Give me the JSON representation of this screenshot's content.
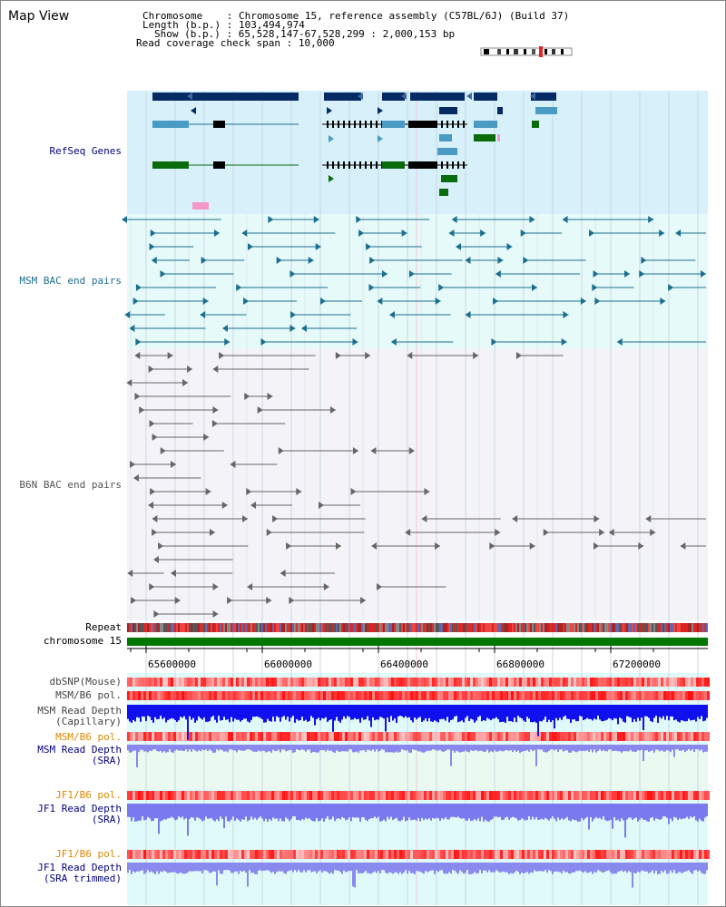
{
  "app": {
    "title": "Map View"
  },
  "info": {
    "chromosome_label": "Chromosome",
    "chromosome_value": "Chromosome 15, reference assembly (C57BL/6J) (Build 37)",
    "length_label": "Length (b.p.)",
    "length_value": "103,494,974",
    "show_label": "Show (b.p.)",
    "show_value": "65,528,147-67,528,299 : 2,000,153 bp",
    "span_label": "Read coverage check span",
    "span_value": "10,000"
  },
  "labels": {
    "refseq": "RefSeq Genes",
    "msm_bac": "MSM BAC end pairs",
    "b6n_bac": "B6N BAC end pairs",
    "repeat": "Repeat",
    "chromosome": "chromosome 15",
    "dbsnp": "dbSNP(Mouse)",
    "msm_b6_pol_1": "MSM/B6 pol.",
    "msm_read_depth_cap_1": "MSM Read Depth",
    "msm_read_depth_cap_2": "(Capillary)",
    "msm_b6_pol_2": "MSM/B6 pol.",
    "msm_read_depth_sra_1": "MSM Read Depth",
    "msm_read_depth_sra_2": "(SRA)",
    "jf1_b6_pol_1": "JF1/B6 pol.",
    "jf1_read_depth_sra_1": "JF1 Read Depth",
    "jf1_read_depth_sra_2": "(SRA)",
    "jf1_b6_pol_2": "JF1/B6 pol.",
    "jf1_read_depth_trim_1": "JF1 Read Depth",
    "jf1_read_depth_trim_2": "(SRA trimmed)"
  },
  "axis": {
    "ticks": [
      "65600000",
      "66000000",
      "66400000",
      "66800000",
      "67200000"
    ]
  },
  "colors": {
    "refseq_bg": "#d8f0fa",
    "msm_bg": "#e6fafa",
    "b6n_bg": "#f4f4f8",
    "lower_bg": "#e0fafa",
    "navy": "#062a63",
    "steel": "#4a9bc4",
    "green": "#0a6b0a",
    "pink": "#f59ac8",
    "teal": "#1b6e8e",
    "grey": "#555555",
    "chrom_green": "#007700",
    "depth_blue": "#1010ee",
    "depth_light": "#7a7aee",
    "label_blue": "#000080",
    "label_orange": "#dd8800"
  }
}
